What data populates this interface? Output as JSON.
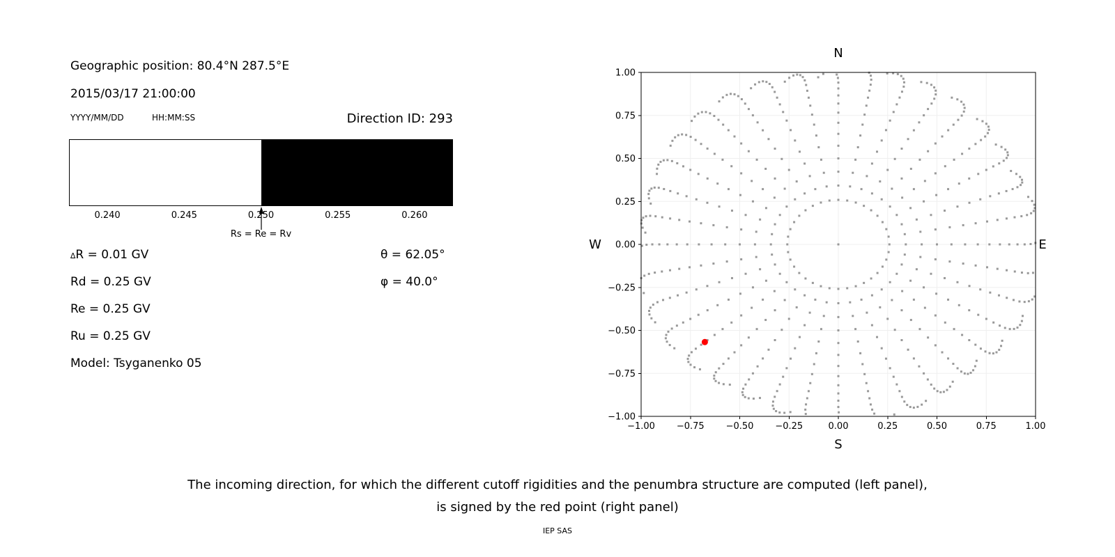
{
  "left_panel": {
    "geo_position": "Geographic position: 80.4°N 287.5°E",
    "datetime": "2015/03/17 21:00:00",
    "date_format": "YYYY/MM/DD",
    "time_format": "HH:MM:SS",
    "direction_id": "Direction ID: 293",
    "penumbra_bar": {
      "range_min": 0.2375,
      "range_max": 0.2625,
      "boundary": 0.25,
      "allowed_color": "#ffffff",
      "forbidden_color": "#000000",
      "tick_values": [
        0.24,
        0.245,
        0.25,
        0.255,
        0.26
      ],
      "tick_labels": [
        "0.240",
        "0.245",
        "0.250",
        "0.255",
        "0.260"
      ],
      "arrow_label": "Rs = Re = Rv"
    },
    "values": {
      "delta_symbol": "∆",
      "delta_r": "R = 0.01 GV",
      "rd": "Rd = 0.25 GV",
      "re": "Re = 0.25 GV",
      "ru": "Ru = 0.25 GV",
      "model": "Model: Tsyganenko 05",
      "theta": "θ = 62.05°",
      "phi": "φ = 40.0°"
    }
  },
  "chart_data": {
    "type": "scatter",
    "xlim": [
      -1.0,
      1.0
    ],
    "ylim": [
      -1.0,
      1.0
    ],
    "grid": true,
    "grid_color": "#efefef",
    "tick_values": [
      -1.0,
      -0.75,
      -0.5,
      -0.25,
      0.0,
      0.25,
      0.5,
      0.75,
      1.0
    ],
    "tick_labels": [
      "−1.00",
      "−0.75",
      "−0.50",
      "−0.25",
      "0.00",
      "0.25",
      "0.50",
      "0.75",
      "1.00"
    ],
    "compass": {
      "north": "N",
      "south": "S",
      "west": "W",
      "east": "E"
    },
    "dot_color": "#999999",
    "dot_size_px": 3,
    "center_dot": {
      "x": 0.0,
      "y": 0.0
    },
    "spokes": {
      "count": 36,
      "azimuth_step_deg": 10,
      "zenith_start_deg": 15,
      "zenith_end_deg": 105,
      "zenith_step_deg": 5,
      "radius_rule": "sin(zenith)",
      "inner_ring_radius": 0.25,
      "tip_scale_max": 1.07,
      "curl_max_deg": 6,
      "curl_onset_deg": 70
    },
    "red_point": {
      "x": -0.677,
      "y": -0.568,
      "color": "#ff0000",
      "radius_px": 4.5
    }
  },
  "caption": {
    "line1": "The incoming direction, for which the different cutoff rigidities and the penumbra structure are computed (left panel),",
    "line2": "is signed by the red point (right panel)",
    "credit": "IEP SAS"
  }
}
